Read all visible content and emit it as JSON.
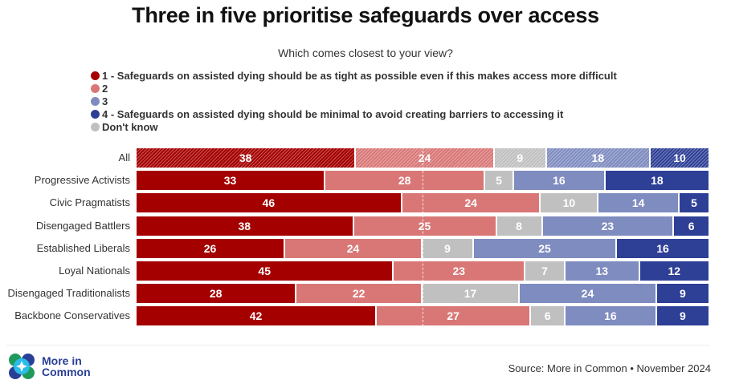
{
  "title": "Three in five prioritise safeguards over access",
  "subtitle": "Which comes closest to your view?",
  "legend": [
    {
      "label": "1 - Safeguards on assisted dying should be as tight as possible even if this makes access more difficult",
      "color": "#a50000"
    },
    {
      "label": "2",
      "color": "#d97777"
    },
    {
      "label": "3",
      "color": "#7f8cc0"
    },
    {
      "label": "4 - Safeguards on assisted dying should be minimal to avoid creating barriers to accessing it",
      "color": "#2e3f96"
    },
    {
      "label": "Don't know",
      "color": "#c0c0c0"
    }
  ],
  "footer": {
    "logo_text_line1": "More in",
    "logo_text_line2": "Common",
    "source": "Source: More in Common • November 2024"
  },
  "chart_data": {
    "type": "bar",
    "orientation": "horizontal-stacked-100",
    "title": "Three in five prioritise safeguards over access",
    "subtitle": "Which comes closest to your view?",
    "categories": [
      "All",
      "Progressive Activists",
      "Civic Pragmatists",
      "Disengaged Battlers",
      "Established Liberals",
      "Loyal Nationals",
      "Disengaged Traditionalists",
      "Backbone Conservatives"
    ],
    "segment_order": [
      "1",
      "2",
      "Don't know",
      "3",
      "4"
    ],
    "series": [
      {
        "name": "1 - Safeguards on assisted dying should be as tight as possible even if this makes access more difficult",
        "key": "1",
        "color": "#a50000",
        "values": [
          38,
          33,
          46,
          38,
          26,
          45,
          28,
          42
        ]
      },
      {
        "name": "2",
        "key": "2",
        "color": "#d97777",
        "values": [
          24,
          28,
          24,
          25,
          24,
          23,
          22,
          27
        ]
      },
      {
        "name": "Don't know",
        "key": "Don't know",
        "color": "#c0c0c0",
        "values": [
          9,
          5,
          10,
          8,
          9,
          7,
          17,
          6
        ]
      },
      {
        "name": "3",
        "key": "3",
        "color": "#7f8cc0",
        "values": [
          18,
          16,
          14,
          23,
          25,
          13,
          24,
          16
        ]
      },
      {
        "name": "4 - Safeguards on assisted dying should be minimal to avoid creating barriers to accessing it",
        "key": "4",
        "color": "#2e3f96",
        "values": [
          10,
          18,
          5,
          6,
          16,
          12,
          9,
          9
        ]
      }
    ],
    "hatched_rows": [
      "All"
    ],
    "reference_line": 50,
    "xlabel": "",
    "ylabel": "",
    "legend_position": "top-left"
  }
}
